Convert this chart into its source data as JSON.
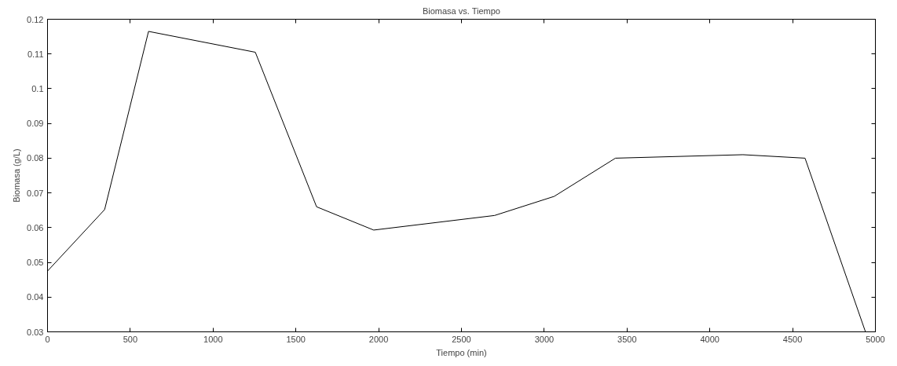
{
  "chart_data": {
    "type": "line",
    "title": "Biomasa vs. Tiempo",
    "xlabel": "Tiempo (min)",
    "ylabel": "Biomasa (g/L)",
    "x": [
      0,
      345,
      610,
      1255,
      1625,
      1970,
      2700,
      3060,
      3430,
      4200,
      4575,
      4940
    ],
    "series": [
      {
        "color": "#000000",
        "values": [
          0.0475,
          0.0652,
          0.1165,
          0.1105,
          0.066,
          0.0593,
          0.0635,
          0.069,
          0.08,
          0.081,
          0.08,
          0.03
        ]
      }
    ],
    "xlim": [
      0,
      5000
    ],
    "ylim": [
      0.03,
      0.12
    ],
    "xticks": [
      0,
      500,
      1000,
      1500,
      2000,
      2500,
      3000,
      3500,
      4000,
      4500,
      5000
    ],
    "yticks": [
      0.03,
      0.04,
      0.05,
      0.06,
      0.07,
      0.08,
      0.09,
      0.1,
      0.11,
      0.12
    ],
    "grid": false,
    "marker": "none",
    "line_style": "solid"
  }
}
